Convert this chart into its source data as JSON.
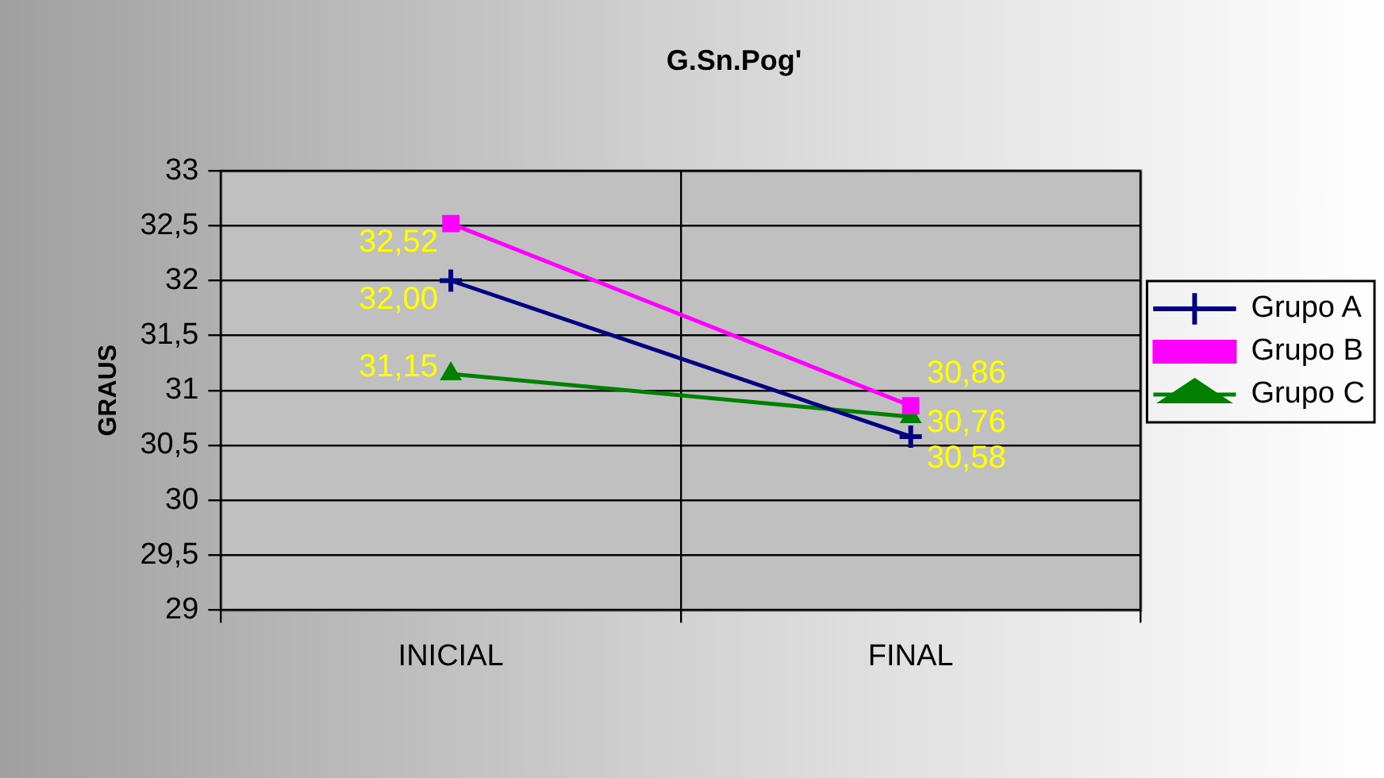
{
  "chart_data": {
    "type": "line",
    "title": "G.Sn.Pog'",
    "ylabel": "GRAUS",
    "categories": [
      "INICIAL",
      "FINAL"
    ],
    "series": [
      {
        "name": "Grupo A",
        "color": "#000080",
        "values": [
          32.0,
          30.58
        ],
        "value_labels": [
          "32,00",
          "30,58"
        ],
        "marker": "cross"
      },
      {
        "name": "Grupo B",
        "color": "#ff00ff",
        "values": [
          32.52,
          30.86
        ],
        "value_labels": [
          "32,52",
          "30,86"
        ],
        "marker": "square"
      },
      {
        "name": "Grupo C",
        "color": "#008000",
        "values": [
          31.15,
          30.76
        ],
        "value_labels": [
          "31,15",
          "30,76"
        ],
        "marker": "triangle"
      }
    ],
    "ylim": [
      29,
      33
    ],
    "yticks": [
      29,
      {
        "value": 29.5,
        "label": "29,5"
      },
      30,
      {
        "value": 30.5,
        "label": "30,5"
      },
      31,
      {
        "value": 31.5,
        "label": "31,5"
      },
      32,
      {
        "value": 32.5,
        "label": "32,5"
      },
      33
    ],
    "grid": true,
    "legend": "right"
  }
}
